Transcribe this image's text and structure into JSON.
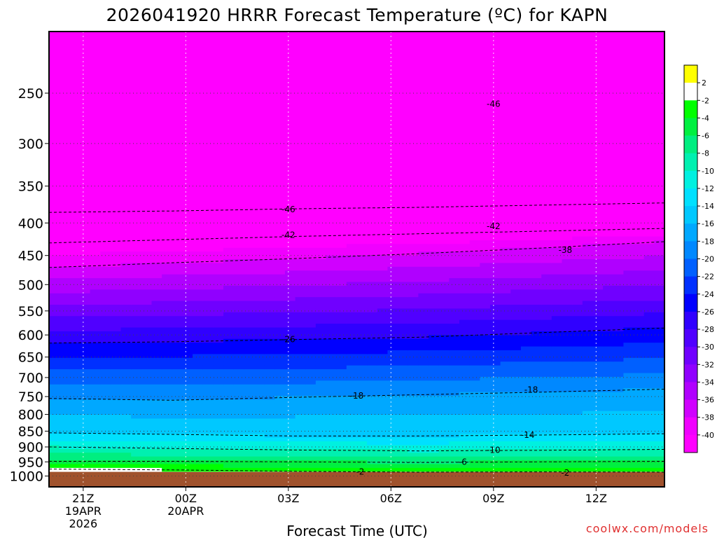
{
  "chart_data": {
    "type": "heatmap",
    "title": "2026041920 HRRR Forecast Temperature (ºC) for KAPN",
    "xlabel": "Forecast Time (UTC)",
    "ylabel": "",
    "x_ticks": [
      {
        "hour": 21,
        "lines": [
          "21Z",
          "19APR",
          "2026"
        ]
      },
      {
        "hour": 24,
        "lines": [
          "00Z",
          "20APR"
        ]
      },
      {
        "hour": 27,
        "lines": [
          "03Z"
        ]
      },
      {
        "hour": 30,
        "lines": [
          "06Z"
        ]
      },
      {
        "hour": 33,
        "lines": [
          "09Z"
        ]
      },
      {
        "hour": 36,
        "lines": [
          "12Z"
        ]
      }
    ],
    "y_ticks": [
      250,
      300,
      350,
      400,
      450,
      500,
      550,
      600,
      650,
      700,
      750,
      800,
      850,
      900,
      950,
      1000
    ],
    "y_scale": "log",
    "y_range_hPa": [
      200,
      1040
    ],
    "x_range_hours_since_19APR_00Z": [
      20,
      38
    ],
    "colorbar_labels": [
      "2",
      "-2",
      "-4",
      "-6",
      "-8",
      "-10",
      "-12",
      "-14",
      "-16",
      "-18",
      "-20",
      "-22",
      "-24",
      "-26",
      "-28",
      "-30",
      "-32",
      "-34",
      "-36",
      "-38",
      "-40"
    ],
    "colorbar_colors": [
      "#ffff00",
      "#ffffff",
      "#00ff00",
      "#00f040",
      "#00ee80",
      "#00f0b0",
      "#00f0e0",
      "#00e0ff",
      "#00c8ff",
      "#00a8ff",
      "#0088ff",
      "#0060ff",
      "#0030ff",
      "#0000ff",
      "#3000ff",
      "#5000ff",
      "#7000ff",
      "#9000ff",
      "#b000ff",
      "#d000ff",
      "#f000ff",
      "#ff00ff"
    ],
    "temperature_contours": [
      {
        "level": -2,
        "p": [
          975,
          978,
          983,
          986,
          985,
          986
        ]
      },
      {
        "level": -6,
        "p": [
          948,
          948,
          950,
          952,
          950,
          948
        ]
      },
      {
        "level": -10,
        "p": [
          900,
          905,
          910,
          913,
          911,
          908
        ]
      },
      {
        "level": -14,
        "p": [
          855,
          860,
          865,
          865,
          862,
          858
        ]
      },
      {
        "level": -18,
        "p": [
          755,
          760,
          752,
          745,
          738,
          730
        ]
      },
      {
        "level": -26,
        "p": [
          618,
          615,
          610,
          605,
          595,
          585
        ]
      },
      {
        "level": -38,
        "p": [
          470,
          462,
          455,
          447,
          438,
          428
        ]
      },
      {
        "level": -42,
        "p": [
          430,
          425,
          420,
          416,
          412,
          408
        ]
      },
      {
        "level": -46,
        "p": [
          385,
          383,
          380,
          378,
          375,
          372
        ]
      }
    ],
    "contour_labels": [
      {
        "text": "-46",
        "hour": 33.0,
        "p": 260
      },
      {
        "text": "-46",
        "hour": 27.0,
        "p": 381
      },
      {
        "text": "-42",
        "hour": 27.0,
        "p": 418
      },
      {
        "text": "-42",
        "hour": 33.0,
        "p": 405
      },
      {
        "text": "-38",
        "hour": 35.1,
        "p": 441
      },
      {
        "text": "-26",
        "hour": 27.0,
        "p": 610
      },
      {
        "text": "-18",
        "hour": 29.0,
        "p": 748
      },
      {
        "text": "-18",
        "hour": 34.1,
        "p": 732
      },
      {
        "text": "-14",
        "hour": 34.0,
        "p": 862
      },
      {
        "text": "-10",
        "hour": 33.0,
        "p": 910
      },
      {
        "text": "-6",
        "hour": 32.1,
        "p": 950
      },
      {
        "text": "-2",
        "hour": 29.1,
        "p": 985
      },
      {
        "text": "-2",
        "hour": 35.1,
        "p": 988
      }
    ],
    "ground_p": 985,
    "ground_color": "#a0522d",
    "grid": true
  },
  "footer": {
    "credit": "coolwx.com/models"
  }
}
